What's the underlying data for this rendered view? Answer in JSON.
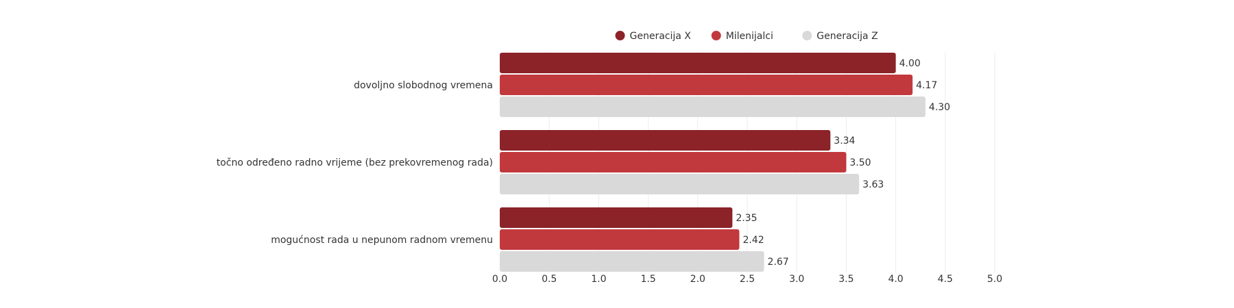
{
  "chart_data": {
    "type": "bar",
    "orientation": "horizontal",
    "categories": [
      "dovoljno slobodnog vremena",
      "točno određeno radno vrijeme (bez prekovremenog rada)",
      "mogućnost rada u nepunom radnom vremenu"
    ],
    "series": [
      {
        "name": "Generacija X",
        "color": "#8b2329",
        "values": [
          4.0,
          3.34,
          2.35
        ]
      },
      {
        "name": "Milenijalci",
        "color": "#c1393d",
        "values": [
          4.17,
          3.5,
          2.42
        ]
      },
      {
        "name": "Generacija Z",
        "color": "#d9d9d9",
        "values": [
          4.3,
          3.63,
          2.67
        ]
      }
    ],
    "xlim": [
      0,
      5
    ],
    "xticks": [
      "0.0",
      "0.5",
      "1.0",
      "1.5",
      "2.0",
      "2.5",
      "3.0",
      "3.5",
      "4.0",
      "4.5",
      "5.0"
    ],
    "grid": true,
    "legend_position": "top"
  }
}
